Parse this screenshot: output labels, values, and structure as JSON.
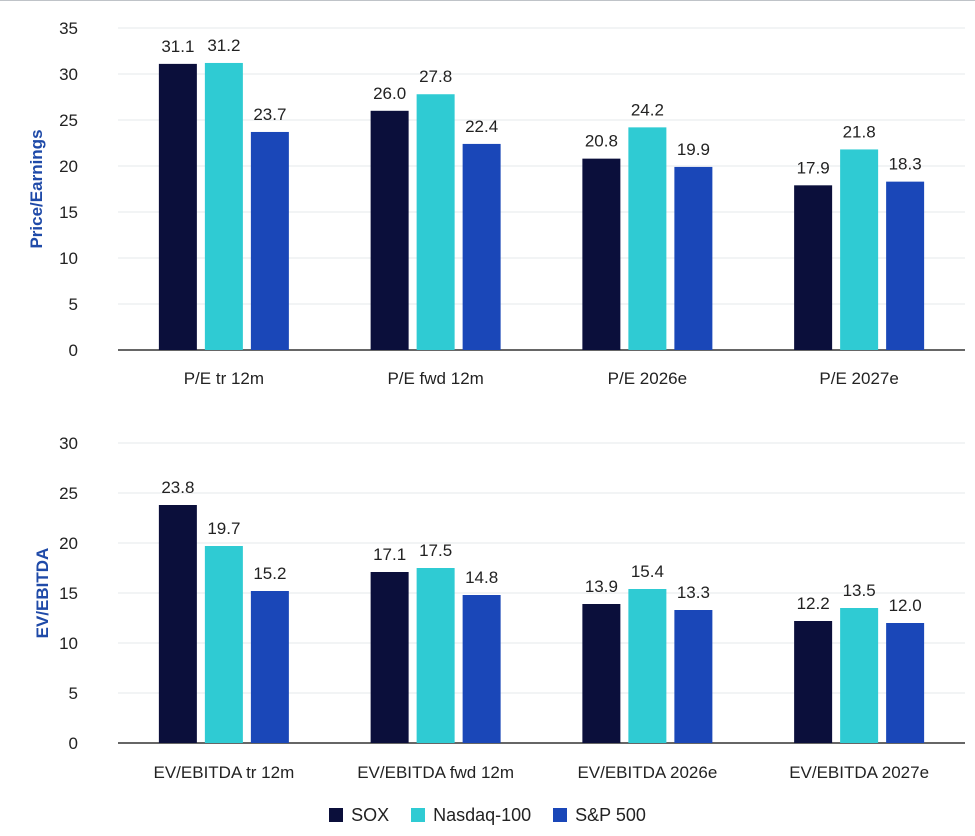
{
  "chart_data": [
    {
      "type": "bar",
      "title": "",
      "xlabel": "",
      "ylabel": "Price/Earnings",
      "ylim": [
        0,
        35
      ],
      "yticks": [
        0,
        5,
        10,
        15,
        20,
        25,
        30,
        35
      ],
      "grid": true,
      "categories": [
        "P/E tr 12m",
        "P/E fwd 12m",
        "P/E 2026e",
        "P/E 2027e"
      ],
      "series": [
        {
          "name": "SOX",
          "values": [
            31.1,
            26.0,
            20.8,
            17.9
          ],
          "labels": [
            "31.1",
            "26.0",
            "20.8",
            "17.9"
          ]
        },
        {
          "name": "Nasdaq-100",
          "values": [
            31.2,
            27.8,
            24.2,
            21.8
          ],
          "labels": [
            "31.2",
            "27.8",
            "24.2",
            "21.8"
          ]
        },
        {
          "name": "S&P 500",
          "values": [
            23.7,
            22.4,
            19.9,
            18.3
          ],
          "labels": [
            "23.7",
            "22.4",
            "19.9",
            "18.3"
          ]
        }
      ]
    },
    {
      "type": "bar",
      "title": "",
      "xlabel": "",
      "ylabel": "EV/EBITDA",
      "ylim": [
        0,
        30
      ],
      "yticks": [
        0,
        5,
        10,
        15,
        20,
        25,
        30
      ],
      "grid": true,
      "categories": [
        "EV/EBITDA tr 12m",
        "EV/EBITDA fwd 12m",
        "EV/EBITDA 2026e",
        "EV/EBITDA 2027e"
      ],
      "series": [
        {
          "name": "SOX",
          "values": [
            23.8,
            17.1,
            13.9,
            12.2
          ],
          "labels": [
            "23.8",
            "17.1",
            "13.9",
            "12.2"
          ]
        },
        {
          "name": "Nasdaq-100",
          "values": [
            19.7,
            17.5,
            15.4,
            13.5
          ],
          "labels": [
            "19.7",
            "17.5",
            "15.4",
            "13.5"
          ]
        },
        {
          "name": "S&P 500",
          "values": [
            15.2,
            14.8,
            13.3,
            12.0
          ],
          "labels": [
            "15.2",
            "14.8",
            "13.3",
            "12.0"
          ]
        }
      ]
    }
  ],
  "legend": {
    "placement": "bottom-center",
    "items": [
      {
        "label": "SOX",
        "color": "#0b0f3b"
      },
      {
        "label": "Nasdaq-100",
        "color": "#2fcbd3"
      },
      {
        "label": "S&P 500",
        "color": "#1a47b8"
      }
    ]
  },
  "colors": {
    "series": [
      "#0b0f3b",
      "#2fcbd3",
      "#1a47b8"
    ],
    "ylabel": "#1f4aa8",
    "grid": "#e6e8eb",
    "axis": "#333333",
    "text": "#222222"
  }
}
